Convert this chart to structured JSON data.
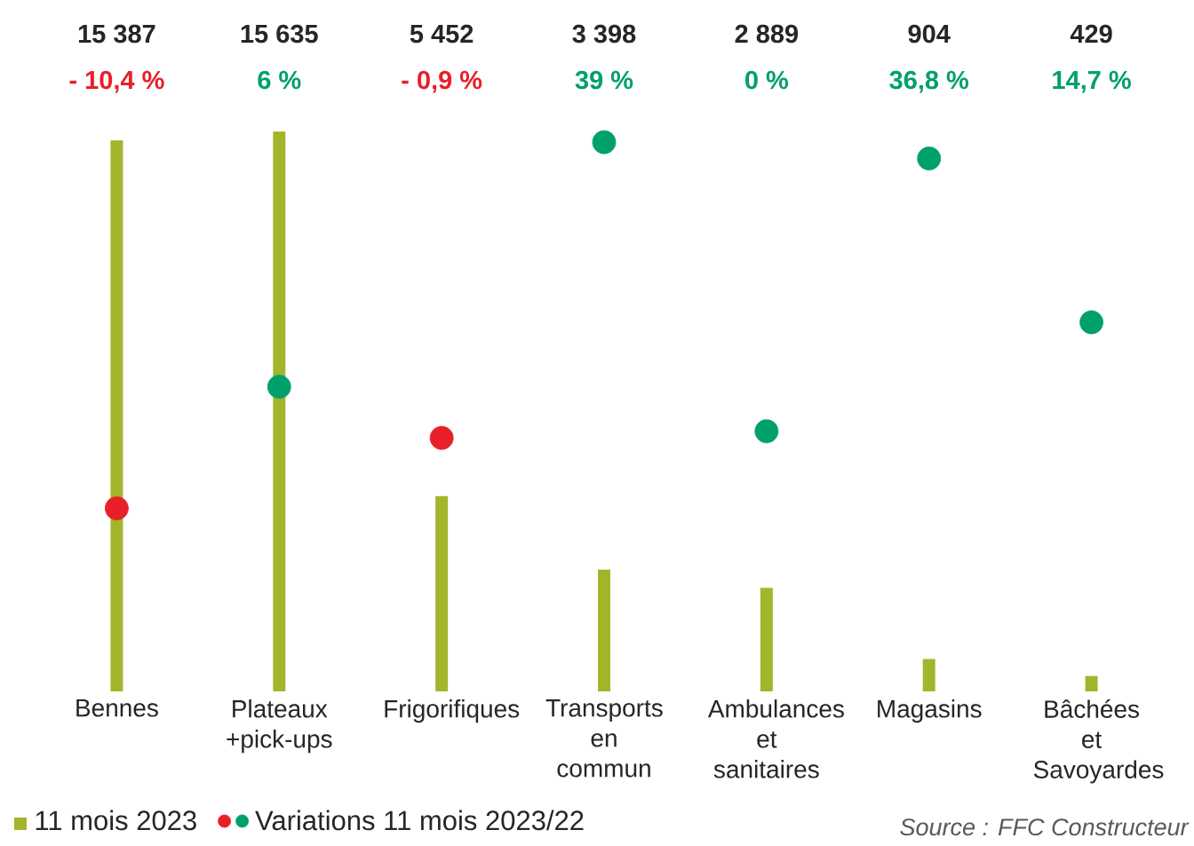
{
  "chart_data": {
    "type": "bar",
    "categories": [
      "Bennes",
      "Plateaux +pick-ups",
      "Frigorifiques",
      "Transports en commun",
      "Ambulances et sanitaires",
      "Magasins",
      "Bâchées et Savoyardes"
    ],
    "tick_labels": "x",
    "legend": "bottom left",
    "marker": "circle",
    "series": [
      {
        "name": "11 mois 2023",
        "color": "#a3b52b",
        "values": [
          15387,
          15635,
          5452,
          3398,
          2889,
          904,
          429
        ],
        "value_labels": [
          "15 387",
          "15 635",
          "5 452",
          "3 398",
          "2 889",
          "904",
          "429"
        ]
      },
      {
        "name": "Variations 11 mois 2023/22",
        "type": "scatter",
        "axis": "y2",
        "colors": [
          "#e8202a",
          "#00a06a",
          "#e8202a",
          "#00a06a",
          "#00a06a",
          "#00a06a",
          "#00a06a"
        ],
        "values": [
          -10.4,
          6,
          -0.9,
          39,
          0,
          36.8,
          14.7
        ],
        "value_labels": [
          "- 10,4 %",
          "6 %",
          "- 0,9 %",
          "39 %",
          "0 %",
          "36,8  %",
          "14,7 %"
        ]
      }
    ],
    "annotations": [
      "Source : FFC Constructeur"
    ]
  }
}
